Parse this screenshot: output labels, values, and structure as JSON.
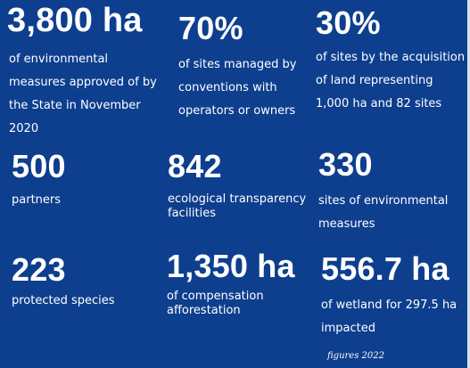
{
  "stats": [
    {
      "value": "3,800 ha",
      "description": "of environmental measures approved of by the State in November 2020"
    },
    {
      "value": "70%",
      "description": "of sites managed by conventions  with operators or owners"
    },
    {
      "value": "30%",
      "description": "of sites by the acquisition of land representing 1,000 ha and 82 sites"
    },
    {
      "value": "500",
      "description": "partners"
    },
    {
      "value": "842",
      "description": "ecological transparency facilities"
    },
    {
      "value": "330",
      "description": "sites of environmental measures"
    },
    {
      "value": "223",
      "description": "protected species"
    },
    {
      "value": "1,350 ha",
      "description": "of compensation afforestation"
    },
    {
      "value": "556.7 ha",
      "description": "of wetland for 297.5 ha impacted"
    }
  ],
  "footnote": "figures 2022",
  "colors": {
    "background": "#0e3f8e",
    "text": "#ffffff"
  }
}
